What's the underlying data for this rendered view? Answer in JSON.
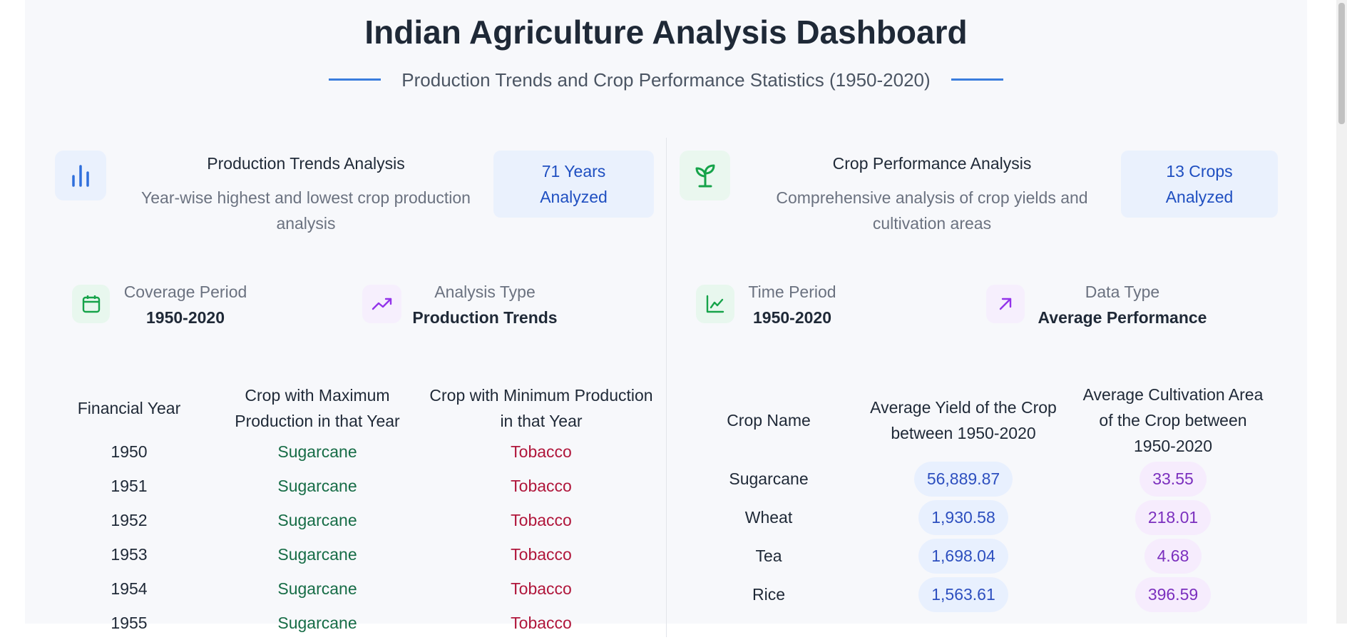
{
  "header": {
    "title": "Indian Agriculture Analysis Dashboard",
    "subtitle": "Production Trends and Crop Performance Statistics (1950-2020)"
  },
  "left_panel": {
    "title": "Production Trends Analysis",
    "description": "Year-wise highest and lowest crop production analysis",
    "badge": "71 Years Analyzed",
    "info": [
      {
        "label": "Coverage Period",
        "value": "1950-2020"
      },
      {
        "label": "Analysis Type",
        "value": "Production Trends"
      }
    ],
    "table": {
      "headers": [
        "Financial Year",
        "Crop with Maximum Production in that Year",
        "Crop with Minimum Production in that Year"
      ],
      "rows": [
        [
          "1950",
          "Sugarcane",
          "Tobacco"
        ],
        [
          "1951",
          "Sugarcane",
          "Tobacco"
        ],
        [
          "1952",
          "Sugarcane",
          "Tobacco"
        ],
        [
          "1953",
          "Sugarcane",
          "Tobacco"
        ],
        [
          "1954",
          "Sugarcane",
          "Tobacco"
        ],
        [
          "1955",
          "Sugarcane",
          "Tobacco"
        ]
      ]
    }
  },
  "right_panel": {
    "title": "Crop Performance Analysis",
    "description": "Comprehensive analysis of crop yields and cultivation areas",
    "badge": "13 Crops Analyzed",
    "info": [
      {
        "label": "Time Period",
        "value": "1950-2020"
      },
      {
        "label": "Data Type",
        "value": "Average Performance"
      }
    ],
    "table": {
      "headers": [
        "Crop Name",
        "Average Yield of the Crop between 1950-2020",
        "Average Cultivation Area of the Crop between 1950-2020"
      ],
      "rows": [
        [
          "Sugarcane",
          "56,889.87",
          "33.55"
        ],
        [
          "Wheat",
          "1,930.58",
          "218.01"
        ],
        [
          "Tea",
          "1,698.04",
          "4.68"
        ],
        [
          "Rice",
          "1,563.61",
          "396.59"
        ]
      ]
    }
  }
}
